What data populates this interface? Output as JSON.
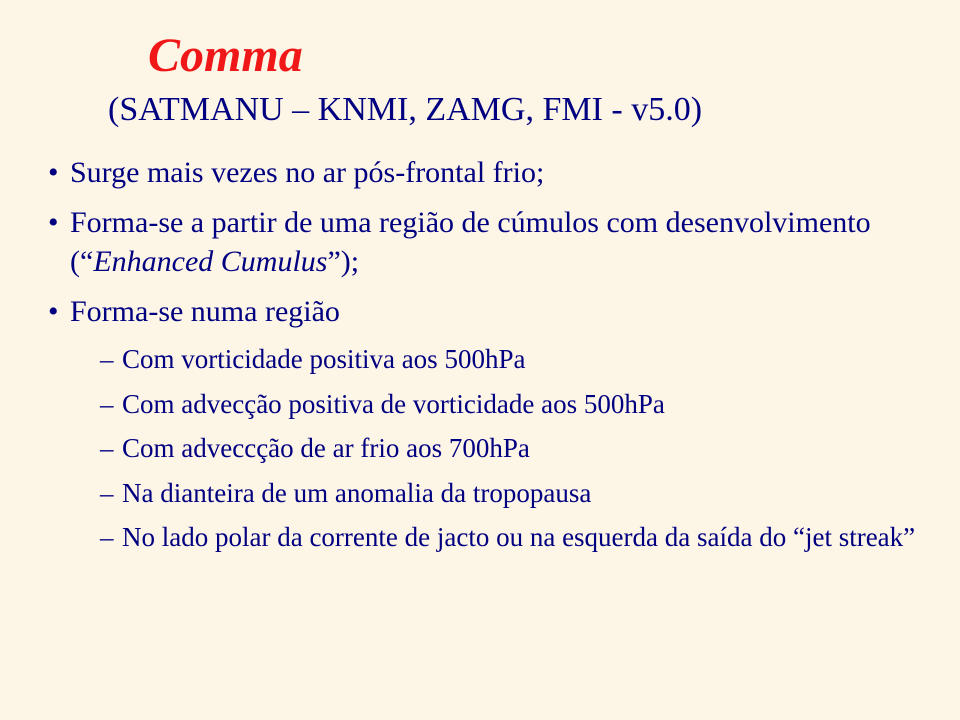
{
  "background_color": "#fdf5e6",
  "title_color": "#ef1717",
  "text_color": "#000080",
  "font_family": "Times New Roman",
  "title_fontsize": 48,
  "subtitle_fontsize": 34,
  "body_fontsize": 30,
  "sub_body_fontsize": 27,
  "slide": {
    "title": "Comma",
    "subtitle": "(SATMANU – KNMI, ZAMG, FMI - v5.0)",
    "bullets": [
      {
        "text": "Surge mais vezes no ar pós-frontal frio;"
      },
      {
        "prefix": "Forma-se a partir de uma região de cúmulos com desenvolvimento (“",
        "italic": "Enhanced Cumulus",
        "suffix": "”);"
      },
      {
        "text": "Forma-se numa região",
        "sub": [
          "Com vorticidade positiva aos 500hPa",
          "Com advecção positiva de vorticidade aos 500hPa",
          "Com adveccção de ar frio aos 700hPa",
          "Na dianteira de um anomalia da tropopausa",
          "No lado polar da corrente de jacto ou na esquerda da saída do “jet streak”"
        ]
      }
    ]
  }
}
